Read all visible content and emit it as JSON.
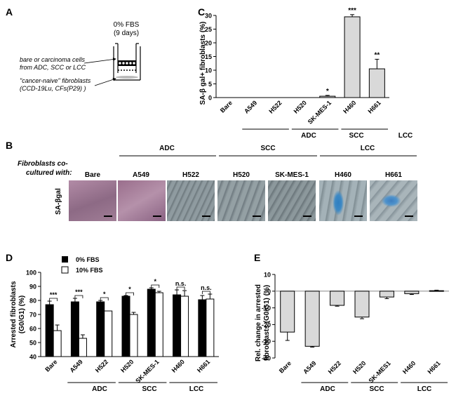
{
  "panel_labels": {
    "a": "A",
    "b": "B",
    "c": "C",
    "d": "D",
    "e": "E"
  },
  "colors": {
    "bar_gray": "#d9d9d9",
    "bar_black": "#000000",
    "photo_pink": "#a7809a",
    "photo_gray": "#7b878c",
    "stain_blue": "#3d89c4"
  },
  "panel_a": {
    "condition_line1": "0% FBS",
    "condition_line2": "(9 days)",
    "cells_line1": "bare or carcinoma cells",
    "cells_line2": "from ADC, SCC or LCC",
    "fibro_line1": "\"cancer-naive\" fibroblasts",
    "fibro_line2": "(CCD-19Lu, CFs(P29) )"
  },
  "groups": {
    "adc": "ADC",
    "scc": "SCC",
    "lcc": "LCC"
  },
  "panel_b": {
    "side_line1": "Fibroblasts co-",
    "side_line2": "cultured with:",
    "row_label": "SA-βgal",
    "columns": [
      "Bare",
      "A549",
      "H522",
      "H520",
      "SK-MES-1",
      "H460",
      "H661"
    ]
  },
  "chart_data": [
    {
      "panel": "C",
      "type": "bar",
      "ylabel": "SA-β gal+ fibroblasts (%)",
      "ylim": [
        0,
        30
      ],
      "yticks": [
        "0",
        "5",
        "10",
        "15",
        "20",
        "25",
        "30"
      ],
      "categories": [
        "Bare",
        "A549",
        "H522",
        "H520",
        "SK-MES-1",
        "H460",
        "H661"
      ],
      "values": [
        0,
        0,
        0,
        0,
        0.5,
        29.5,
        10.5
      ],
      "errors": [
        0,
        0,
        0,
        0,
        0.3,
        0.8,
        3.5
      ],
      "annotations": [
        "",
        "",
        "",
        "",
        "*",
        "***",
        "**"
      ]
    },
    {
      "panel": "D",
      "type": "bar",
      "ylabel_line1": "Arrested fibroblasts",
      "ylabel_line2": "(G0/G1) (%)",
      "ylim": [
        40,
        100
      ],
      "yticks": [
        "40",
        "50",
        "60",
        "70",
        "80",
        "90",
        "100"
      ],
      "categories": [
        "Bare",
        "A549",
        "H522",
        "H520",
        "SK-MES-1",
        "H460",
        "H661"
      ],
      "legend": [
        "0% FBS",
        "10% FBS"
      ],
      "series": [
        {
          "name": "0% FBS",
          "values": [
            77,
            79,
            79,
            83,
            88,
            84,
            80.5
          ],
          "errors": [
            2.5,
            2.5,
            1,
            0.5,
            1,
            3.5,
            3
          ]
        },
        {
          "name": "10% FBS",
          "values": [
            58.5,
            53,
            72.5,
            70,
            85.5,
            83,
            81
          ],
          "errors": [
            4,
            2.5,
            0,
            1.5,
            1,
            4,
            3.5
          ]
        }
      ],
      "significance": [
        "***",
        "***",
        "*",
        "*",
        "*",
        "n.s.",
        "n.s."
      ]
    },
    {
      "panel": "E",
      "type": "bar",
      "ylabel_line1": "Rel. change in arrested",
      "ylabel_line2": "fibroblasts (G0/G1) (%)",
      "ylim": [
        -40,
        10
      ],
      "yticks": [
        "10",
        "0",
        "-10",
        "-20",
        "-30",
        "-40"
      ],
      "categories": [
        "Bare",
        "A549",
        "H522",
        "H520",
        "SK-MES1",
        "H460",
        "H661"
      ],
      "values": [
        -24.5,
        -33,
        -8.5,
        -15.5,
        -3.5,
        -1.5,
        0.3
      ],
      "errors": [
        5,
        0.5,
        0.5,
        1,
        1,
        0.5,
        0.3
      ]
    }
  ]
}
